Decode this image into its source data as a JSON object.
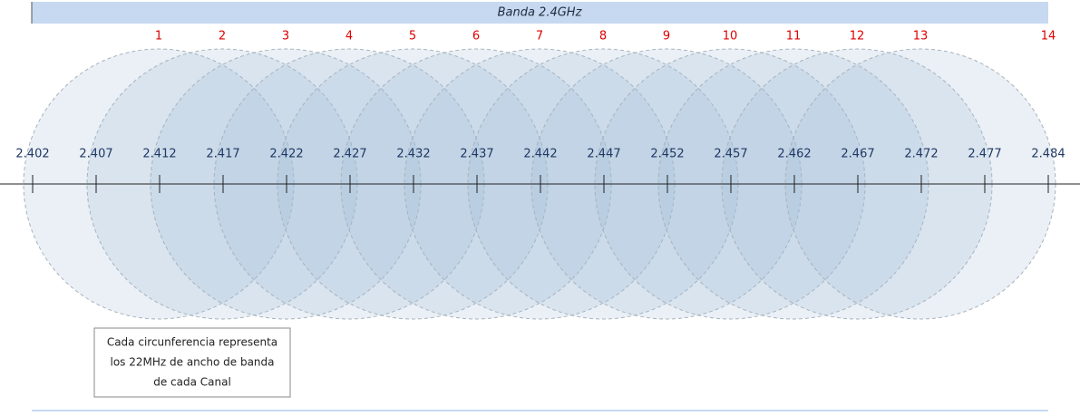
{
  "header": {
    "title": "Banda 2.4GHz"
  },
  "channels": [
    "1",
    "2",
    "3",
    "4",
    "5",
    "6",
    "7",
    "8",
    "9",
    "10",
    "11",
    "12",
    "13",
    "14"
  ],
  "frequencies": [
    "2.402",
    "2.407",
    "2.412",
    "2.417",
    "2.422",
    "2.427",
    "2.432",
    "2.437",
    "2.442",
    "2.447",
    "2.452",
    "2.457",
    "2.462",
    "2.467",
    "2.472",
    "2.477",
    "2.484"
  ],
  "note": [
    "Cada circunferencia representa",
    "los 22MHz de ancho de banda",
    "de cada Canal"
  ]
}
